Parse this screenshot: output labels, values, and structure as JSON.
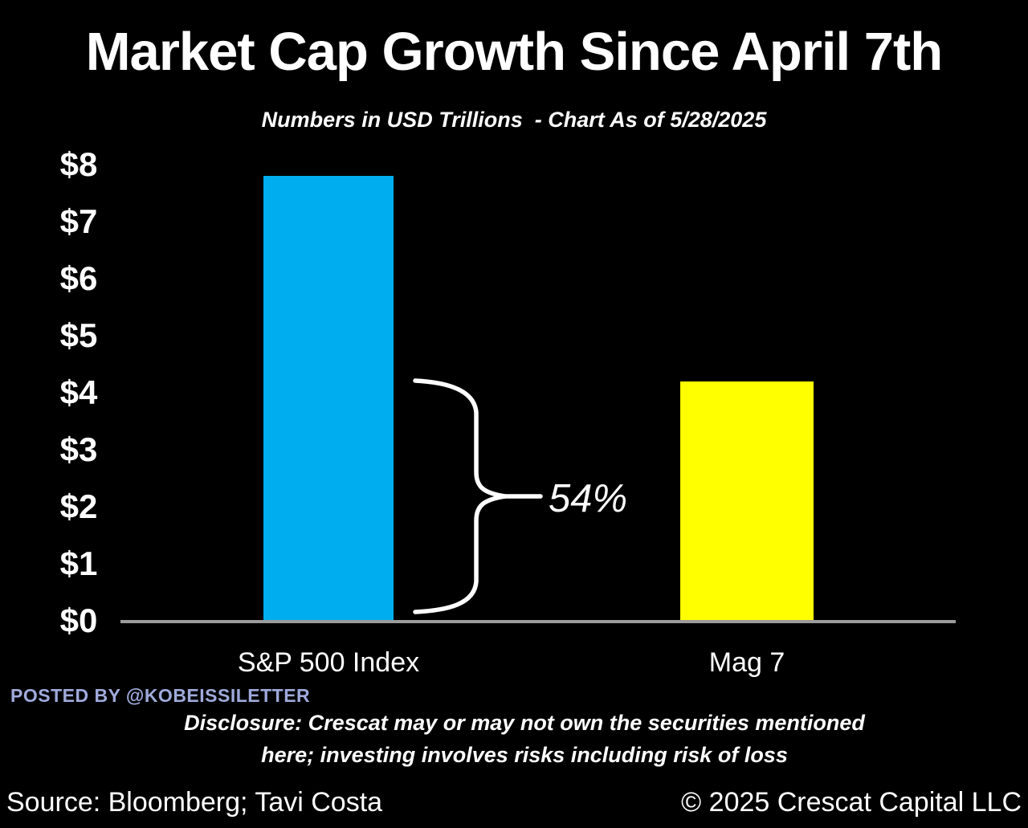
{
  "header": {
    "title": "Market Cap Growth Since April 7th",
    "subtitle": "Numbers in USD Trillions  - Chart As of 5/28/2025"
  },
  "chart_data": {
    "type": "bar",
    "title": "Market Cap Growth Since April 7th",
    "subtitle": "Numbers in USD Trillions  - Chart As of 5/28/2025",
    "units": "USD Trillions",
    "categories": [
      "S&P 500 Index",
      "Mag 7"
    ],
    "values": [
      7.8,
      4.2
    ],
    "bar_colors": [
      "#00AEF0",
      "#FFFF00"
    ],
    "ylim": [
      0,
      8
    ],
    "y_ticks": [
      {
        "label": "$8",
        "value": 8
      },
      {
        "label": "$7",
        "value": 7
      },
      {
        "label": "$6",
        "value": 6
      },
      {
        "label": "$5",
        "value": 5
      },
      {
        "label": "$4",
        "value": 4
      },
      {
        "label": "$3",
        "value": 3
      },
      {
        "label": "$2",
        "value": 2
      },
      {
        "label": "$1",
        "value": 1
      },
      {
        "label": "$0",
        "value": 0
      }
    ],
    "grid": false,
    "legend": false,
    "annotation": {
      "label": "54%"
    }
  },
  "attribution": {
    "posted_by": "POSTED BY @KOBEISSILETTER"
  },
  "disclosure": {
    "line1": "Disclosure: Crescat may or may not own the securities mentioned",
    "line2": "here; investing involves risks including risk of loss"
  },
  "footer": {
    "source": "Source: Bloomberg; Tavi Costa",
    "copyright": "© 2025 Crescat Capital LLC"
  },
  "colors": {
    "background": "#000000",
    "text": "#FFFFFF",
    "axis": "#9B9B9B",
    "sp500_bar": "#00AEF0",
    "mag7_bar": "#FFFF00",
    "posted_by": "#9FAADB"
  }
}
